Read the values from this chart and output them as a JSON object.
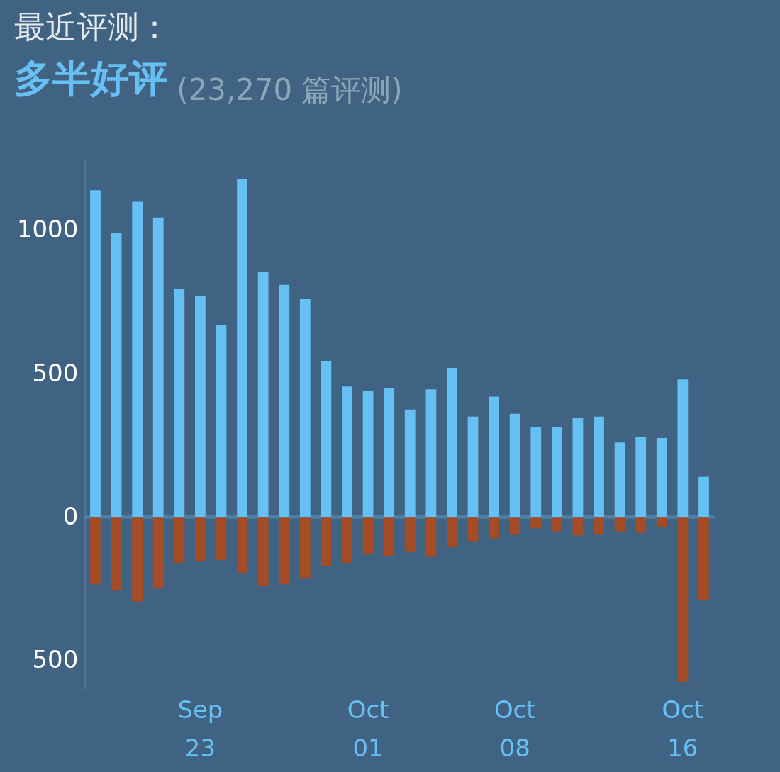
{
  "chart_data": {
    "type": "bar",
    "title": "最近评测：",
    "subtitle": "多半好评",
    "annotations": [
      "(23,270 篇评测)"
    ],
    "categories": [
      null,
      null,
      null,
      null,
      null,
      "Sep 23",
      null,
      null,
      null,
      null,
      null,
      null,
      null,
      "Oct 01",
      null,
      null,
      null,
      null,
      null,
      null,
      "Oct 08",
      null,
      null,
      null,
      null,
      null,
      null,
      null,
      "Oct 16",
      null
    ],
    "series": [
      {
        "color": "#66c0f4",
        "values": [
          1140,
          990,
          1100,
          1045,
          795,
          770,
          670,
          1180,
          855,
          810,
          760,
          545,
          455,
          440,
          450,
          375,
          445,
          520,
          350,
          420,
          360,
          315,
          315,
          345,
          350,
          260,
          280,
          275,
          480,
          140
        ]
      },
      {
        "color": "#a34c25",
        "values": [
          -235,
          -255,
          -295,
          -250,
          -160,
          -155,
          -150,
          -195,
          -240,
          -235,
          -215,
          -170,
          -160,
          -130,
          -135,
          -120,
          -140,
          -105,
          -85,
          -75,
          -60,
          -40,
          -50,
          -65,
          -60,
          -50,
          -55,
          -35,
          -575,
          -290
        ]
      }
    ],
    "stacked": true,
    "ylim": [
      -600,
      1250
    ],
    "yticks": [
      {
        "value": -500,
        "label": "500"
      },
      0,
      500,
      1000
    ],
    "ref_lines": [
      {
        "axis": "y",
        "value": 0,
        "color": "#4b7fa3"
      }
    ]
  }
}
